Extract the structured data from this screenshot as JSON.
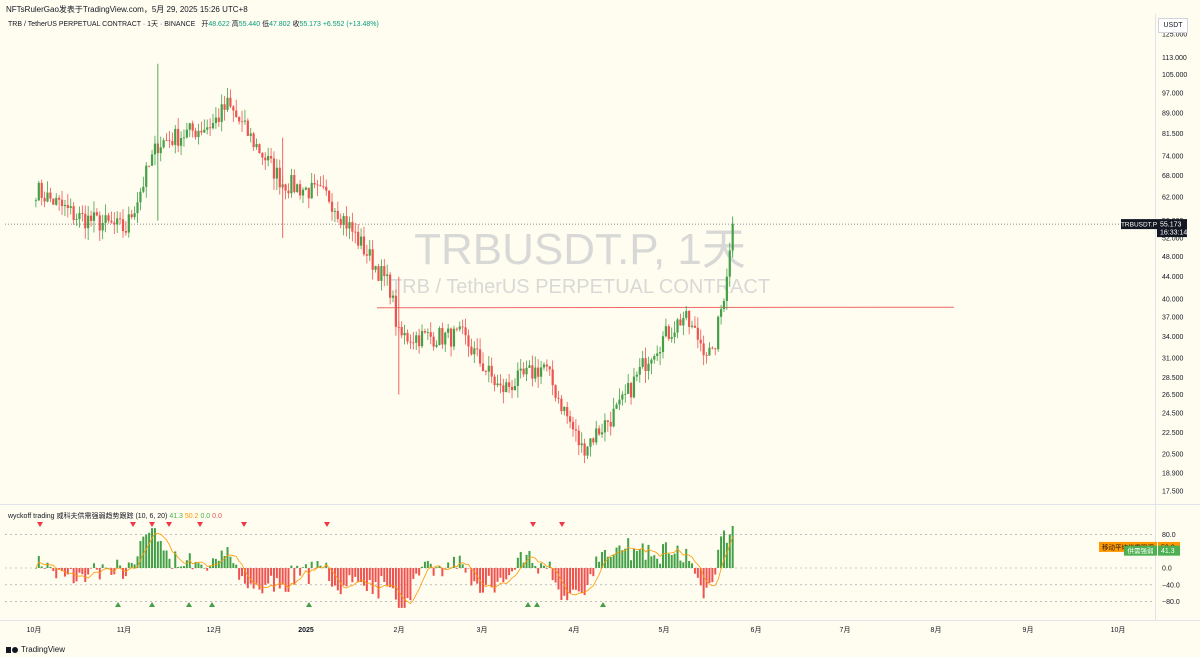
{
  "header": {
    "publisher_line": "NFTsRulerGao发表于TradingView.com，5月 29, 2025 15:26 UTC+8"
  },
  "legend": {
    "symbol_line": "TRB / TetherUS PERPETUAL CONTRACT · 1天 · BINANCE",
    "open_label": "开",
    "open": "48.622",
    "high_label": "高",
    "high": "55.440",
    "low_label": "低",
    "low": "47.802",
    "close_label": "收",
    "close": "55.173",
    "change": "+6.552 (+13.48%)"
  },
  "currency_button": "USDT",
  "watermark": {
    "title": "TRBUSDT.P, 1天",
    "subtitle": "TRB / TetherUS PERPETUAL CONTRACT"
  },
  "last_price_tag": {
    "symbol": "TRBUSDT.P",
    "price": "55.173",
    "countdown": "16:33:14"
  },
  "colors": {
    "up": "#43a047",
    "down": "#ef5350",
    "background": "#fffdf0",
    "resistance_line": "#f06868",
    "avg_tag": "#ff9800",
    "strength_tag": "#4caf50"
  },
  "indicator": {
    "name": "wyckoff trading 威科夫供需强弱趋势跟踪 (10, 6, 20)",
    "v1": "41.3",
    "v2": "50.2",
    "v3": "0.0",
    "v4": "0.0",
    "tag_avg_label": "移动平均供需强弱",
    "tag_avg_value": "50.2",
    "tag_strength_label": "供需强弱",
    "tag_strength_value": "41.3",
    "axis_ticks": [
      "80.0",
      "0.0",
      "−40.0",
      "−80.0"
    ]
  },
  "footer": {
    "brand": "TradingView"
  },
  "chart_data": {
    "type": "candlestick",
    "timeframe": "1D",
    "scale": "log",
    "price_axis_ticks": [
      "125.000",
      "113.000",
      "105.000",
      "97.000",
      "89.000",
      "81.500",
      "74.000",
      "68.000",
      "62.000",
      "56.000",
      "52.000",
      "48.000",
      "44.000",
      "40.000",
      "37.000",
      "34.000",
      "31.000",
      "28.500",
      "26.500",
      "24.500",
      "22.500",
      "20.500",
      "18.900",
      "17.500"
    ],
    "price_axis_tick_values": [
      125,
      113,
      105,
      97,
      89,
      81.5,
      74,
      68,
      62,
      56,
      52,
      48,
      44,
      40,
      37,
      34,
      31,
      28.5,
      26.5,
      24.5,
      22.5,
      20.5,
      18.9,
      17.5
    ],
    "time_axis_labels": [
      "10月",
      "11月",
      "12月",
      "2025",
      "2月",
      "3月",
      "4月",
      "5月",
      "6月",
      "7月",
      "8月",
      "9月",
      "10月"
    ],
    "resistance_level": 38.5,
    "last_close": 55.173,
    "key_closes": [
      {
        "date": "2024-10-01",
        "close": 64
      },
      {
        "date": "2024-10-15",
        "close": 57
      },
      {
        "date": "2024-11-01",
        "close": 54
      },
      {
        "date": "2024-11-12",
        "close": 78
      },
      {
        "date": "2024-12-01",
        "close": 85
      },
      {
        "date": "2024-12-06",
        "close": 92
      },
      {
        "date": "2024-12-25",
        "close": 66
      },
      {
        "date": "2025-01-10",
        "close": 62
      },
      {
        "date": "2025-01-31",
        "close": 42
      },
      {
        "date": "2025-02-03",
        "close": 34
      },
      {
        "date": "2025-02-25",
        "close": 34
      },
      {
        "date": "2025-03-10",
        "close": 27
      },
      {
        "date": "2025-03-25",
        "close": 30
      },
      {
        "date": "2025-04-07",
        "close": 21
      },
      {
        "date": "2025-04-20",
        "close": 25
      },
      {
        "date": "2025-05-01",
        "close": 32
      },
      {
        "date": "2025-05-12",
        "close": 37
      },
      {
        "date": "2025-05-22",
        "close": 31
      },
      {
        "date": "2025-05-27",
        "close": 44
      },
      {
        "date": "2025-05-29",
        "close": 55.173
      }
    ],
    "indicator_signal_markers": "red triangles above, green triangles below"
  }
}
